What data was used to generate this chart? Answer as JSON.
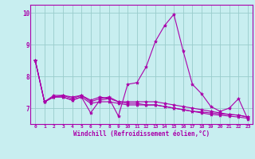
{
  "xlabel": "Windchill (Refroidissement éolien,°C)",
  "bg_color": "#c8eef0",
  "line_color": "#aa00aa",
  "grid_color": "#99cccc",
  "xlim": [
    -0.5,
    23.5
  ],
  "ylim": [
    6.5,
    10.25
  ],
  "yticks": [
    7,
    8,
    9,
    10
  ],
  "xticks": [
    0,
    1,
    2,
    3,
    4,
    5,
    6,
    7,
    8,
    9,
    10,
    11,
    12,
    13,
    14,
    15,
    16,
    17,
    18,
    19,
    20,
    21,
    22,
    23
  ],
  "series": [
    [
      8.5,
      7.2,
      7.35,
      7.35,
      7.25,
      7.35,
      6.85,
      7.25,
      7.3,
      6.75,
      7.75,
      7.8,
      8.3,
      9.1,
      9.6,
      9.95,
      8.8,
      7.75,
      7.45,
      7.05,
      6.9,
      7.0,
      7.3,
      6.65
    ],
    [
      8.5,
      7.2,
      7.35,
      7.35,
      7.25,
      7.35,
      7.15,
      7.2,
      7.2,
      7.15,
      7.1,
      7.1,
      7.1,
      7.1,
      7.05,
      7.0,
      6.95,
      6.9,
      6.85,
      6.8,
      6.78,
      6.75,
      6.72,
      6.68
    ],
    [
      8.5,
      7.2,
      7.35,
      7.4,
      7.3,
      7.4,
      7.2,
      7.3,
      7.35,
      7.2,
      7.2,
      7.2,
      7.2,
      7.2,
      7.15,
      7.1,
      7.05,
      7.0,
      6.95,
      6.9,
      6.85,
      6.8,
      6.78,
      6.72
    ],
    [
      8.5,
      7.2,
      7.4,
      7.4,
      7.35,
      7.4,
      7.25,
      7.35,
      7.3,
      7.2,
      7.15,
      7.15,
      7.1,
      7.1,
      7.05,
      7.0,
      6.95,
      6.9,
      6.88,
      6.85,
      6.82,
      6.8,
      6.78,
      6.72
    ]
  ]
}
